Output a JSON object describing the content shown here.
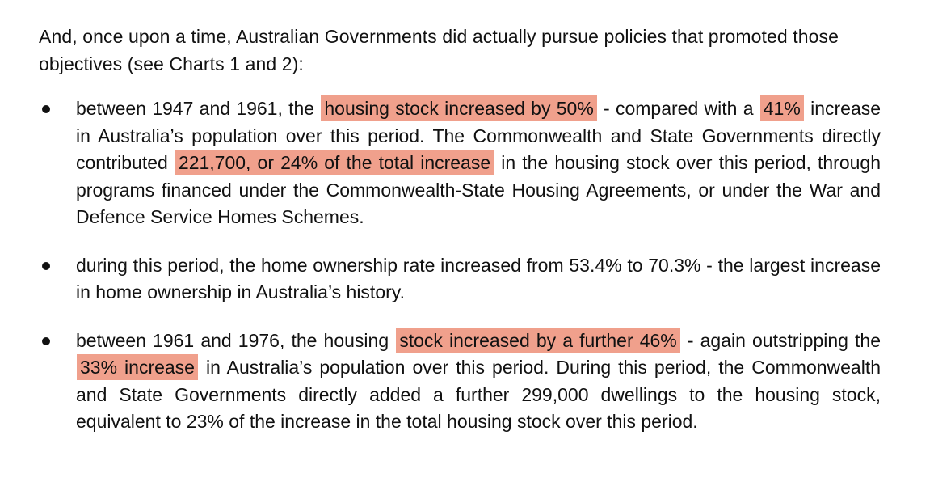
{
  "intro": "And, once upon a time, Australian Governments did actually pursue policies that promoted those objectives (see Charts 1 and 2):",
  "colors": {
    "highlight": "#f0a08c",
    "text": "#111111"
  },
  "bullets": [
    {
      "t1": "between 1947 and 1961, the",
      "h1": "housing stock increased by 50%",
      "t2": "- compared with a",
      "h2": "41%",
      "t3": "increase in Australia’s population over this period. The Commonwealth and State Governments directly contributed",
      "h3": "221,700, or 24% of the total increase",
      "t4": "in the housing stock over this period, through programs financed under the Commonwealth-State Housing Agreements, or under the War and Defence Service Homes Schemes."
    },
    {
      "text": "during this period, the home ownership rate increased from 53.4% to 70.3% - the largest increase in home ownership in Australia’s history."
    },
    {
      "t1": "between 1961 and 1976, the housing",
      "h1": "stock increased by a further 46%",
      "t2": "- again outstripping the",
      "h2": "33% increase",
      "t3": "in Australia’s population over this period. During this period, the Commonwealth and State Governments directly added a further 299,000 dwellings to the housing stock, equivalent to 23% of the increase in the total housing stock over this period."
    }
  ]
}
